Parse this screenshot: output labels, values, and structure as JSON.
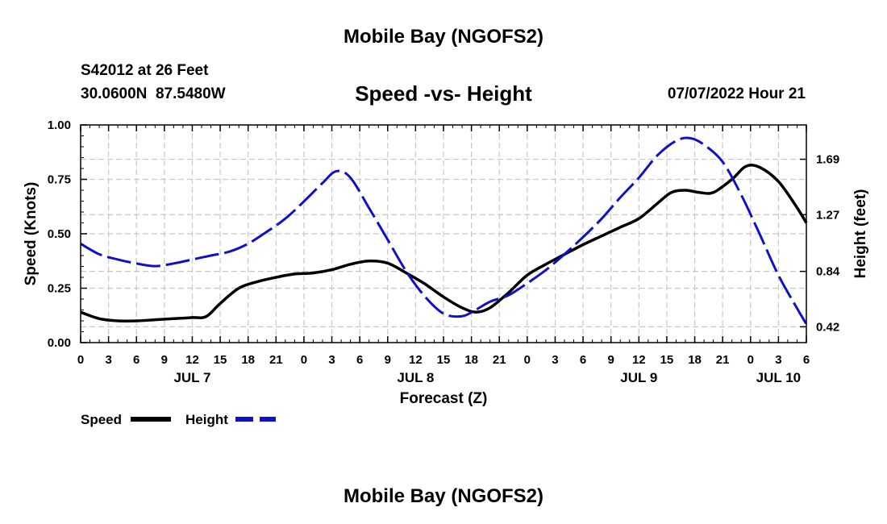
{
  "header": {
    "title": "Mobile Bay (NGOFS2)",
    "station_line": "S42012 at 26 Feet",
    "coords_line": "30.0600N  87.5480W",
    "subtitle": "Speed -vs- Height",
    "timestamp": "07/07/2022 Hour 21"
  },
  "footer": {
    "title": "Mobile Bay (NGOFS2)"
  },
  "colors": {
    "speed": "#000000",
    "height": "#1010c8",
    "grid": "#c8c8c8"
  },
  "chart_data": {
    "type": "line",
    "title": "Speed -vs- Height",
    "xlabel": "Forecast (Z)",
    "ylabel": "Speed (Knots)",
    "y2label": "Height (feet)",
    "xlim": [
      0,
      78
    ],
    "ylim": [
      0,
      1.0
    ],
    "y2lim": [
      0.3,
      1.95
    ],
    "grid": true,
    "legend_position": "bottom-left",
    "x_ticks": [
      0,
      3,
      6,
      9,
      12,
      15,
      18,
      21,
      24,
      27,
      30,
      33,
      36,
      39,
      42,
      45,
      48,
      51,
      54,
      57,
      60,
      63,
      66,
      69,
      72,
      75,
      78
    ],
    "x_tick_labels": [
      "0",
      "3",
      "6",
      "9",
      "12",
      "15",
      "18",
      "21",
      "0",
      "3",
      "6",
      "9",
      "12",
      "15",
      "18",
      "21",
      "0",
      "3",
      "6",
      "9",
      "12",
      "15",
      "18",
      "21",
      "0",
      "3",
      "6"
    ],
    "day_labels": [
      {
        "x": 12,
        "label": "JUL 7"
      },
      {
        "x": 36,
        "label": "JUL 8"
      },
      {
        "x": 60,
        "label": "JUL 9"
      },
      {
        "x": 75,
        "label": "JUL 10"
      }
    ],
    "y_ticks": [
      0,
      0.25,
      0.5,
      0.75,
      1.0
    ],
    "y_tick_labels": [
      "0.00",
      "0.25",
      "0.50",
      "0.75",
      "1.00"
    ],
    "y2_ticks": [
      0.42,
      0.84,
      1.27,
      1.69
    ],
    "y2_tick_labels": [
      "0.42",
      "0.84",
      "1.27",
      "1.69"
    ],
    "series": [
      {
        "name": "Speed",
        "axis": "left",
        "color": "#000000",
        "dash": "solid",
        "x": [
          0,
          2,
          4,
          6,
          8,
          10,
          12,
          13.5,
          15,
          17,
          19,
          21,
          23,
          25,
          27,
          29,
          31,
          33,
          35,
          37,
          39,
          41,
          42.5,
          44,
          46,
          48,
          50,
          52,
          54,
          56,
          58,
          60,
          62,
          63.5,
          65,
          66.5,
          68,
          70,
          71.5,
          73,
          75,
          77,
          78
        ],
        "values": [
          0.14,
          0.11,
          0.1,
          0.1,
          0.105,
          0.11,
          0.115,
          0.12,
          0.18,
          0.25,
          0.28,
          0.3,
          0.315,
          0.32,
          0.335,
          0.36,
          0.375,
          0.365,
          0.32,
          0.27,
          0.21,
          0.16,
          0.14,
          0.16,
          0.23,
          0.31,
          0.36,
          0.405,
          0.45,
          0.49,
          0.53,
          0.57,
          0.64,
          0.69,
          0.7,
          0.69,
          0.69,
          0.75,
          0.81,
          0.805,
          0.74,
          0.62,
          0.55
        ]
      },
      {
        "name": "Height",
        "axis": "right",
        "color": "#1010c8",
        "dash": "dashed",
        "x": [
          0,
          2,
          4,
          6,
          8,
          10,
          12,
          14,
          16,
          18,
          20,
          22,
          24,
          26,
          27.5,
          29,
          31,
          33,
          35,
          37,
          39,
          41,
          42.5,
          44,
          46,
          48,
          50,
          52,
          54,
          56,
          58,
          60,
          62,
          64,
          65.5,
          67,
          69,
          71,
          73,
          75,
          77,
          78
        ],
        "values": [
          1.05,
          0.97,
          0.93,
          0.9,
          0.88,
          0.9,
          0.93,
          0.96,
          0.99,
          1.05,
          1.14,
          1.24,
          1.37,
          1.51,
          1.6,
          1.55,
          1.32,
          1.08,
          0.84,
          0.65,
          0.52,
          0.5,
          0.55,
          0.61,
          0.66,
          0.75,
          0.85,
          0.97,
          1.1,
          1.24,
          1.4,
          1.55,
          1.72,
          1.83,
          1.85,
          1.8,
          1.67,
          1.42,
          1.12,
          0.81,
          0.56,
          0.44
        ]
      }
    ]
  }
}
